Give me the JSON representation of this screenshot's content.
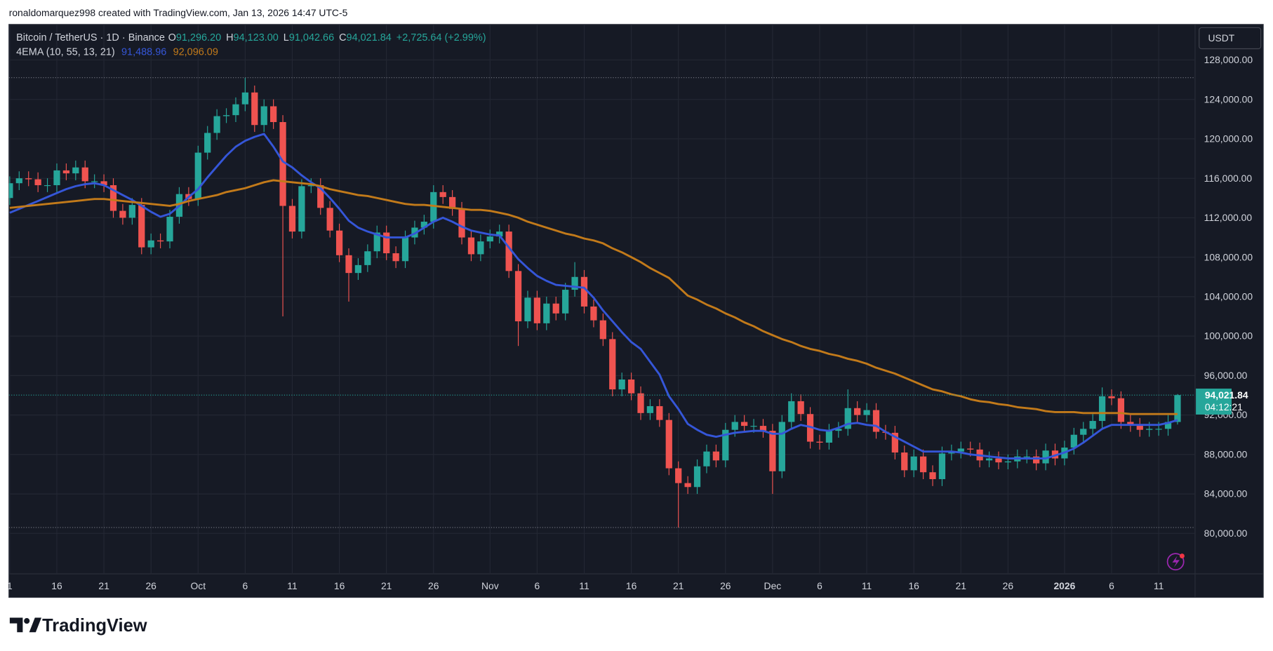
{
  "attribution": "ronaldomarquez998 created with TradingView.com, Jan 13, 2026 14:47 UTC-5",
  "brand": "TradingView",
  "chart_data": {
    "type": "candlestick",
    "legend": {
      "symbol": "Bitcoin / TetherUS · 1D · Binance",
      "ohlc": [
        {
          "key": "O",
          "value": "91,296.20"
        },
        {
          "key": "H",
          "value": "94,123.00"
        },
        {
          "key": "L",
          "value": "91,042.66"
        },
        {
          "key": "C",
          "value": "94,021.84"
        }
      ],
      "change": "+2,725.64 (+2.99%)",
      "indicator": "4EMA (10, 55, 13, 21)"
    },
    "currency": "USDT",
    "last_price_label": "94,021.84",
    "countdown": "04:12:21",
    "up_color": "#26a69a",
    "down_color": "#ef5350",
    "grid": true,
    "categories": [
      "1",
      null,
      null,
      null,
      null,
      "16",
      null,
      null,
      null,
      null,
      "21",
      null,
      null,
      null,
      null,
      "26",
      null,
      null,
      null,
      null,
      "Oct",
      null,
      null,
      null,
      null,
      "6",
      null,
      null,
      null,
      null,
      "11",
      null,
      null,
      null,
      null,
      "16",
      null,
      null,
      null,
      null,
      "21",
      null,
      null,
      null,
      null,
      "26",
      null,
      null,
      null,
      null,
      null,
      "Nov",
      null,
      null,
      null,
      null,
      "6",
      null,
      null,
      null,
      null,
      "11",
      null,
      null,
      null,
      null,
      "16",
      null,
      null,
      null,
      null,
      "21",
      null,
      null,
      null,
      null,
      "26",
      null,
      null,
      null,
      null,
      "Dec",
      null,
      null,
      null,
      null,
      "6",
      null,
      null,
      null,
      null,
      "11",
      null,
      null,
      null,
      null,
      "16",
      null,
      null,
      null,
      null,
      "21",
      null,
      null,
      null,
      null,
      "26",
      null,
      null,
      null,
      null,
      null,
      "2026",
      null,
      null,
      null,
      null,
      "6",
      null,
      null,
      null,
      null,
      "11",
      null,
      null
    ],
    "open": [
      114000,
      115500,
      116000,
      115900,
      115300,
      115300,
      116800,
      116500,
      117100,
      115700,
      115700,
      115300,
      112700,
      112000,
      113300,
      109000,
      109700,
      109600,
      112100,
      114400,
      113900,
      118600,
      120600,
      122300,
      122400,
      123500,
      124700,
      121400,
      123300,
      121700,
      113200,
      110600,
      115200,
      115300,
      113000,
      110700,
      108200,
      106400,
      107200,
      108600,
      110500,
      108400,
      107600,
      110000,
      111000,
      111600,
      114600,
      114100,
      112900,
      110000,
      108300,
      109600,
      110100,
      110600,
      106600,
      101500,
      103900,
      101300,
      103300,
      102300,
      104700,
      106000,
      103000,
      101600,
      99700,
      94600,
      95600,
      94200,
      92200,
      92900,
      91500,
      86600,
      85100,
      84700,
      86800,
      88300,
      87400,
      90500,
      91300,
      90900,
      90900,
      90400,
      86300,
      91300,
      93400,
      92100,
      89300,
      89200,
      90400,
      90600,
      92700,
      92000,
      92500,
      90300,
      90200,
      88200,
      86400,
      87800,
      86200,
      85500,
      88100,
      88300,
      88600,
      88500,
      87400,
      87600,
      87200,
      87300,
      87800,
      87800,
      87100,
      88400,
      87600,
      88700,
      90000,
      90600,
      91400,
      93900,
      93700,
      91300,
      91000,
      90500,
      90600,
      90600,
      91296.2
    ],
    "high": [
      116200,
      116700,
      116700,
      116600,
      116000,
      117500,
      117500,
      117800,
      117800,
      116400,
      116400,
      116000,
      113400,
      114000,
      114000,
      110400,
      110400,
      112800,
      115100,
      115100,
      119300,
      121300,
      123000,
      123100,
      124200,
      126200,
      125400,
      124000,
      124000,
      122400,
      113900,
      115900,
      116000,
      116000,
      113700,
      111400,
      108900,
      107900,
      109300,
      111200,
      111200,
      109100,
      110700,
      111700,
      112300,
      115300,
      115300,
      114800,
      113600,
      110700,
      110300,
      110800,
      111300,
      111300,
      107300,
      104600,
      104600,
      104000,
      104000,
      105400,
      107500,
      106700,
      103700,
      102300,
      100400,
      96300,
      96300,
      94900,
      93600,
      93600,
      92200,
      87300,
      85800,
      87500,
      89000,
      89000,
      91200,
      92000,
      92000,
      91600,
      91600,
      91100,
      92000,
      94200,
      94100,
      92800,
      90000,
      91100,
      91300,
      94600,
      93400,
      93200,
      93200,
      91000,
      90900,
      88900,
      88500,
      88500,
      86900,
      88800,
      89000,
      89300,
      89300,
      89200,
      88300,
      88300,
      88000,
      88500,
      88500,
      88500,
      89100,
      89100,
      89400,
      90700,
      91300,
      92100,
      94800,
      94600,
      94400,
      92000,
      91700,
      91300,
      91300,
      92000,
      94123
    ],
    "low": [
      113300,
      114800,
      115200,
      114600,
      114600,
      114600,
      115800,
      115800,
      115000,
      115000,
      114600,
      112000,
      111300,
      111300,
      108300,
      108300,
      108900,
      108900,
      111400,
      113200,
      113200,
      117900,
      119900,
      121600,
      121700,
      122800,
      120700,
      120700,
      121000,
      102000,
      109900,
      109900,
      114500,
      112300,
      110000,
      107500,
      103500,
      105700,
      106500,
      107900,
      107700,
      106900,
      106900,
      109300,
      110300,
      110900,
      113400,
      112200,
      109300,
      107600,
      107600,
      108900,
      109400,
      105900,
      99000,
      100800,
      100600,
      100600,
      101600,
      101600,
      104000,
      102300,
      100900,
      99000,
      93900,
      93900,
      93500,
      91500,
      91500,
      90800,
      85900,
      80600,
      84000,
      84000,
      86100,
      86700,
      86700,
      89800,
      90200,
      90200,
      89700,
      84000,
      85600,
      90600,
      91400,
      88600,
      88500,
      88500,
      89700,
      89900,
      91300,
      91300,
      89600,
      89500,
      87500,
      85700,
      85700,
      85500,
      84800,
      84800,
      87400,
      87600,
      87800,
      86700,
      86700,
      86500,
      86500,
      86600,
      87100,
      86400,
      86400,
      86900,
      86900,
      88000,
      89300,
      89900,
      90700,
      93000,
      90600,
      90300,
      89800,
      89800,
      89900,
      89900,
      91042.66
    ],
    "close": [
      115500,
      116000,
      115900,
      115300,
      115300,
      116800,
      116500,
      117100,
      115700,
      115700,
      115300,
      112700,
      112000,
      113300,
      109000,
      109700,
      109600,
      112100,
      114400,
      113900,
      118600,
      120600,
      122300,
      122400,
      123500,
      124700,
      121400,
      123300,
      121700,
      113200,
      110600,
      115200,
      115300,
      113000,
      110700,
      108200,
      106400,
      107200,
      108600,
      110500,
      108400,
      107600,
      110000,
      111000,
      111600,
      114600,
      114100,
      112900,
      110000,
      108300,
      109600,
      110100,
      110600,
      106600,
      101500,
      103900,
      101300,
      103300,
      102300,
      104700,
      106000,
      103000,
      101600,
      99700,
      94600,
      95600,
      94200,
      92200,
      92900,
      91500,
      86600,
      85100,
      84700,
      86800,
      88300,
      87400,
      90500,
      91300,
      90900,
      90900,
      90400,
      86300,
      91300,
      93400,
      92100,
      89300,
      89200,
      90400,
      90600,
      92700,
      92000,
      92500,
      90300,
      90200,
      88200,
      86400,
      87800,
      86200,
      85500,
      88100,
      88300,
      88600,
      88500,
      87400,
      87600,
      87200,
      87300,
      87800,
      87800,
      87100,
      88400,
      87600,
      88700,
      90000,
      90600,
      91400,
      93900,
      93700,
      91300,
      91000,
      90500,
      90600,
      90600,
      91296.2,
      94021.84
    ],
    "series": [
      {
        "color": "#3556d8",
        "last_label": "91,488.96",
        "values": [
          112500,
          112900,
          113300,
          113700,
          114100,
          114500,
          114900,
          115200,
          115400,
          115500,
          115300,
          114800,
          114300,
          113800,
          113200,
          112600,
          112100,
          112400,
          113200,
          114100,
          114900,
          116100,
          117200,
          118300,
          119200,
          119800,
          120200,
          120500,
          119200,
          117700,
          117100,
          116300,
          115600,
          115000,
          114000,
          112900,
          111700,
          111000,
          110600,
          110300,
          110000,
          110000,
          110000,
          110400,
          111000,
          111600,
          112000,
          111600,
          111100,
          110700,
          110500,
          110300,
          110200,
          109000,
          107800,
          106900,
          106100,
          105600,
          105200,
          105100,
          105000,
          104900,
          103900,
          102600,
          101500,
          100400,
          99400,
          98700,
          97400,
          96100,
          93900,
          92600,
          91100,
          90500,
          90000,
          89800,
          90000,
          90200,
          90300,
          90400,
          90400,
          90100,
          90100,
          90600,
          91000,
          90800,
          90500,
          90400,
          90700,
          91100,
          91200,
          91000,
          90900,
          90300,
          89800,
          89300,
          88800,
          88300,
          88300,
          88300,
          88300,
          88200,
          88000,
          87900,
          87800,
          87700,
          87600,
          87600,
          87600,
          87600,
          87600,
          87900,
          88200,
          88600,
          89200,
          89900,
          90600,
          91000,
          91000,
          91000,
          91000,
          91000,
          91000,
          91200,
          91488.96
        ]
      },
      {
        "color": "#c27a1a",
        "last_label": "92,096.09",
        "values": [
          113000,
          113100,
          113200,
          113300,
          113400,
          113500,
          113600,
          113700,
          113800,
          113900,
          113900,
          113800,
          113700,
          113600,
          113500,
          113400,
          113300,
          113200,
          113400,
          113700,
          113900,
          114100,
          114300,
          114600,
          114800,
          115000,
          115300,
          115600,
          115800,
          115700,
          115600,
          115500,
          115400,
          115200,
          114900,
          114700,
          114500,
          114300,
          114200,
          114000,
          113800,
          113600,
          113400,
          113300,
          113300,
          113200,
          113100,
          113000,
          112900,
          112800,
          112800,
          112700,
          112500,
          112300,
          112000,
          111600,
          111300,
          111000,
          110700,
          110400,
          110200,
          109900,
          109700,
          109400,
          108900,
          108500,
          108000,
          107500,
          106900,
          106400,
          105900,
          105000,
          104100,
          103700,
          103200,
          102800,
          102300,
          101900,
          101400,
          101000,
          100500,
          100100,
          99700,
          99400,
          99000,
          98700,
          98500,
          98200,
          98000,
          97700,
          97500,
          97200,
          96800,
          96500,
          96200,
          95800,
          95400,
          95000,
          94600,
          94400,
          94100,
          93900,
          93600,
          93400,
          93300,
          93100,
          93000,
          92800,
          92700,
          92600,
          92400,
          92300,
          92300,
          92300,
          92200,
          92200,
          92200,
          92200,
          92200,
          92100,
          92100,
          92100,
          92100,
          92100,
          92096.09
        ]
      }
    ],
    "range_lines": [
      126200,
      80600
    ],
    "ylim": [
      75900,
      131600
    ],
    "yticks": [
      {
        "value": 80000,
        "label": "80,000.00"
      },
      {
        "value": 84000,
        "label": "84,000.00"
      },
      {
        "value": 88000,
        "label": "88,000.00"
      },
      {
        "value": 92000,
        "label": "92,000.00"
      },
      {
        "value": 96000,
        "label": "96,000.00"
      },
      {
        "value": 100000,
        "label": "100,000.00"
      },
      {
        "value": 104000,
        "label": "104,000.00"
      },
      {
        "value": 108000,
        "label": "108,000.00"
      },
      {
        "value": 112000,
        "label": "112,000.00"
      },
      {
        "value": 116000,
        "label": "116,000.00"
      },
      {
        "value": 120000,
        "label": "120,000.00"
      },
      {
        "value": 124000,
        "label": "124,000.00"
      },
      {
        "value": 128000,
        "label": "128,000.00"
      }
    ]
  }
}
